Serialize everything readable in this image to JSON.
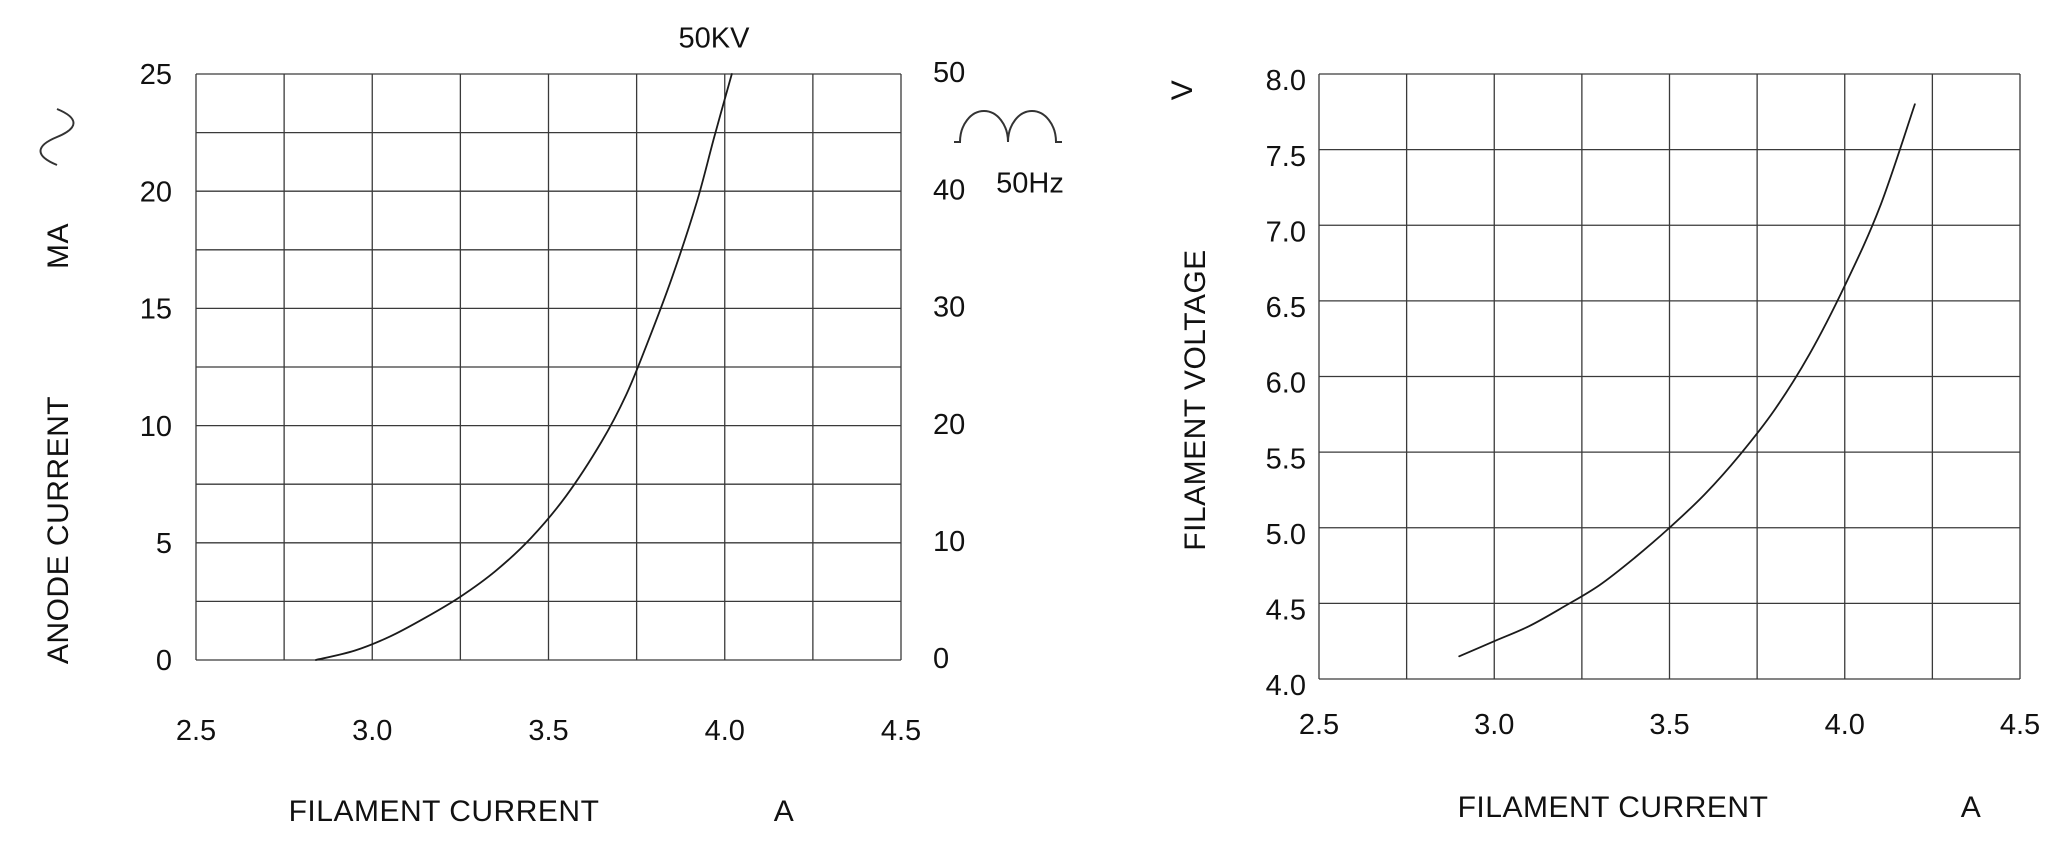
{
  "figure": {
    "background": "#ffffff",
    "grid_color": "#3a3a3a",
    "curve_color": "#1b1b1b"
  },
  "chart_data": [
    {
      "type": "line",
      "title": "",
      "xlabel": "FILAMENT CURRENT",
      "x_unit": "A",
      "ylabel": "ANODE CURRENT",
      "y_unit": "MA",
      "curve_label": "50KV",
      "frequency_label": "50Hz",
      "icons": [
        "sine-wave-icon",
        "full-wave-rectified-icon"
      ],
      "xlim": [
        2.5,
        4.5
      ],
      "x_grid_step": 0.25,
      "x_ticks": [
        2.5,
        3.0,
        3.5,
        4.0,
        4.5
      ],
      "x_tick_labels": [
        "2.5",
        "3.0",
        "3.5",
        "4.0",
        "4.5"
      ],
      "ylim": [
        0,
        25
      ],
      "y_grid_step": 2.5,
      "y_ticks": [
        0,
        5,
        10,
        15,
        20,
        25
      ],
      "y_tick_labels": [
        "0",
        "5",
        "10",
        "15",
        "20",
        "25"
      ],
      "right_ylim": [
        0,
        50
      ],
      "right_y_ticks": [
        0,
        10,
        20,
        30,
        40,
        50
      ],
      "right_y_tick_labels": [
        "0",
        "10",
        "20",
        "30",
        "40",
        "50"
      ],
      "grid": true,
      "legend": false,
      "series": [
        {
          "name": "50KV",
          "points": [
            [
              2.84,
              0
            ],
            [
              2.95,
              0.4
            ],
            [
              3.05,
              1.0
            ],
            [
              3.15,
              1.8
            ],
            [
              3.25,
              2.7
            ],
            [
              3.35,
              3.8
            ],
            [
              3.45,
              5.2
            ],
            [
              3.55,
              7.0
            ],
            [
              3.65,
              9.3
            ],
            [
              3.72,
              11.3
            ],
            [
              3.78,
              13.5
            ],
            [
              3.85,
              16.3
            ],
            [
              3.92,
              19.5
            ],
            [
              3.97,
              22.3
            ],
            [
              4.02,
              25.0
            ]
          ]
        }
      ]
    },
    {
      "type": "line",
      "title": "",
      "xlabel": "FILAMENT CURRENT",
      "x_unit": "A",
      "ylabel": "FILAMENT VOLTAGE",
      "y_unit": "V",
      "xlim": [
        2.5,
        4.5
      ],
      "x_grid_step": 0.25,
      "x_ticks": [
        2.5,
        3.0,
        3.5,
        4.0,
        4.5
      ],
      "x_tick_labels": [
        "2.5",
        "3.0",
        "3.5",
        "4.0",
        "4.5"
      ],
      "ylim": [
        4.0,
        8.0
      ],
      "y_grid_step": 0.5,
      "y_ticks": [
        4.0,
        4.5,
        5.0,
        5.5,
        6.0,
        6.5,
        7.0,
        7.5,
        8.0
      ],
      "y_tick_labels": [
        "4.0",
        "4.5",
        "5.0",
        "5.5",
        "6.0",
        "6.5",
        "7.0",
        "7.5",
        "8.0"
      ],
      "grid": true,
      "legend": false,
      "series": [
        {
          "name": "filament-voltage",
          "points": [
            [
              2.9,
              4.15
            ],
            [
              3.0,
              4.25
            ],
            [
              3.1,
              4.35
            ],
            [
              3.2,
              4.48
            ],
            [
              3.3,
              4.62
            ],
            [
              3.4,
              4.8
            ],
            [
              3.5,
              5.0
            ],
            [
              3.6,
              5.22
            ],
            [
              3.7,
              5.48
            ],
            [
              3.8,
              5.78
            ],
            [
              3.9,
              6.15
            ],
            [
              4.0,
              6.6
            ],
            [
              4.1,
              7.12
            ],
            [
              4.2,
              7.8
            ]
          ]
        }
      ]
    }
  ]
}
